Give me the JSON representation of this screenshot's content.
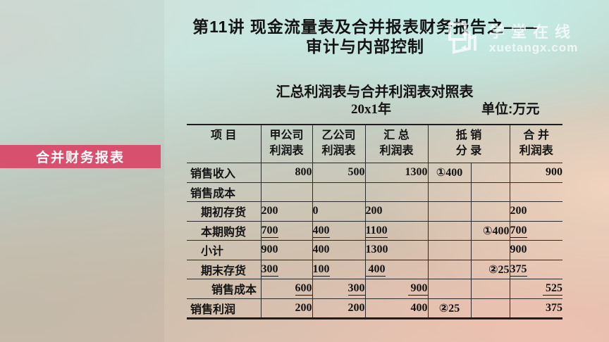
{
  "lecture": {
    "title_line1": "第11讲  现金流量表及合并报表财务报告之——",
    "title_line2": "审计与内部控制"
  },
  "side_label": {
    "text": "合并财务报表",
    "color": "#d7516f"
  },
  "watermark": {
    "brand": "学堂在线",
    "domain": "xuetangx.com",
    "logo_icon": "xuetangx-logo-icon"
  },
  "table": {
    "title": "汇总利润表与合并利润表对照表",
    "year": "20x1年",
    "unit": "单位:万元",
    "header": [
      {
        "l1": "项  目",
        "l2": "",
        "colspan": 1
      },
      {
        "l1": "甲公司",
        "l2": "利润表",
        "colspan": 1
      },
      {
        "l1": "乙公司",
        "l2": "利润表",
        "colspan": 1
      },
      {
        "l1": "汇  总",
        "l2": "利润表",
        "colspan": 1
      },
      {
        "l1": "抵  销",
        "l2": "分  录",
        "colspan": 2
      },
      {
        "l1": "合  并",
        "l2": "利润表",
        "colspan": 1
      }
    ],
    "rows": [
      {
        "label": "销售收入",
        "indent": 0,
        "align": "right",
        "underline": false,
        "a": "800",
        "b": "500",
        "total": "1300",
        "elim_dr": "①400",
        "elim_cr": "",
        "merged": "900"
      },
      {
        "label": "销售成本",
        "indent": 0,
        "align": "right",
        "underline": false,
        "a": "",
        "b": "",
        "total": "",
        "elim_dr": "",
        "elim_cr": "",
        "merged": ""
      },
      {
        "label": "期初存货",
        "indent": 1,
        "align": "left",
        "underline": false,
        "a": "200",
        "b": "0",
        "total": "200",
        "elim_dr": "",
        "elim_cr": "",
        "merged": "200"
      },
      {
        "label": "本期购货",
        "indent": 1,
        "align": "left",
        "underline": true,
        "a": "700",
        "b": "400",
        "total": "1100",
        "elim_dr": "",
        "elim_cr": "①400",
        "merged": "700"
      },
      {
        "label": "小计",
        "indent": 1,
        "align": "left",
        "underline": false,
        "a": "900",
        "b": "400",
        "total": "1300",
        "elim_dr": "",
        "elim_cr": "",
        "merged": "900"
      },
      {
        "label": "期末存货",
        "indent": 1,
        "align": "left",
        "underline": true,
        "a": "300",
        "b": "100",
        "total": " 400",
        "elim_dr": "",
        "elim_cr": "②25",
        "merged": "375"
      },
      {
        "label": "销售成本",
        "indent": 2,
        "align": "right",
        "underline": true,
        "a": "600",
        "b": "300",
        "total": " 900",
        "elim_dr": "",
        "elim_cr": "",
        "merged": " 525"
      },
      {
        "label": "销售利润",
        "indent": 0,
        "align": "right",
        "underline": false,
        "a": "200",
        "b": "200",
        "total": "400",
        "elim_dr": "②25",
        "elim_cr": "",
        "merged": "375"
      }
    ]
  }
}
